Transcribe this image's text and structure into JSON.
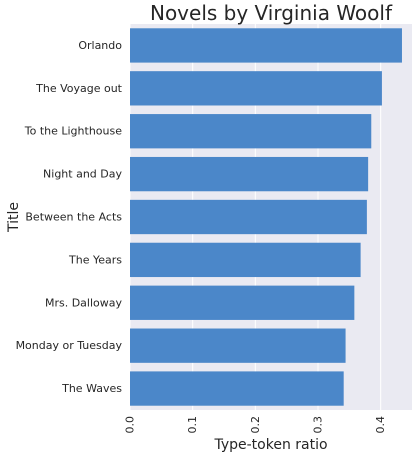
{
  "chart_data": {
    "type": "bar",
    "orientation": "horizontal",
    "title": "Novels by Virginia Woolf",
    "xlabel": "Type-token ratio",
    "ylabel": "Title",
    "xlim": [
      0,
      0.45
    ],
    "x_ticks": [
      "0.0",
      "0.1",
      "0.2",
      "0.3",
      "0.4"
    ],
    "grid": true,
    "categories": [
      "Orlando",
      "The Voyage out",
      "To the Lighthouse",
      "Night and Day",
      "Between the Acts",
      "The Years",
      "Mrs. Dalloway",
      "Monday or Tuesday",
      "The Waves"
    ],
    "values": [
      0.434,
      0.402,
      0.385,
      0.38,
      0.378,
      0.368,
      0.358,
      0.344,
      0.341
    ],
    "colors": {
      "bar": "#4b87c9",
      "plot_background": "#eaeaf2",
      "grid": "#ffffff",
      "text": "#262626"
    }
  }
}
